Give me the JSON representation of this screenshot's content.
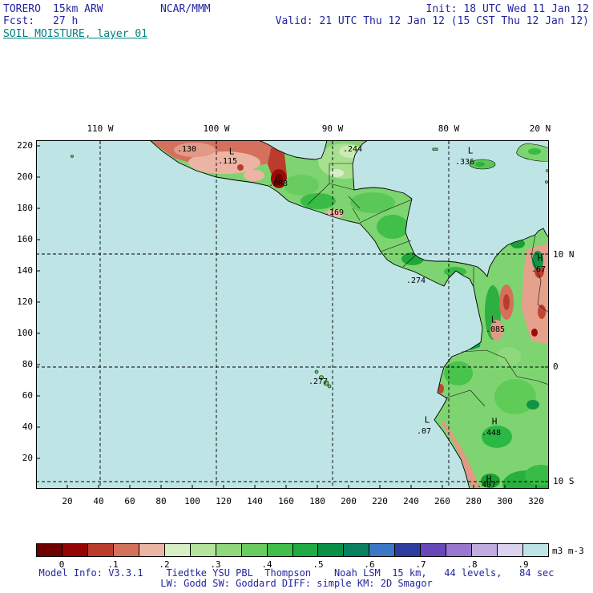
{
  "header": {
    "model": "TORERO",
    "config": "15km ARW",
    "org": "NCAR/MMM",
    "init": "Init: 18 UTC Wed 11 Jan 12",
    "fcst_label": "Fcst:",
    "fcst": "27 h",
    "valid": "Valid: 21 UTC Thu 12 Jan 12 (15 CST Thu 12 Jan 12)",
    "field_title": "SOIL MOISTURE, layer 01"
  },
  "axes": {
    "top": [
      "110 W",
      "100 W",
      "90 W",
      "80 W",
      "20 N"
    ],
    "right": [
      "10 N",
      "0",
      "10 S"
    ],
    "left": [
      "220",
      "200",
      "180",
      "160",
      "140",
      "120",
      "100",
      "80",
      "60",
      "40",
      "20"
    ],
    "bottom": [
      "20",
      "40",
      "60",
      "80",
      "100",
      "120",
      "140",
      "160",
      "180",
      "200",
      "220",
      "240",
      "260",
      "280",
      "300",
      "320"
    ]
  },
  "annotations": [
    ".130",
    "L",
    ".115",
    ".088",
    ".244",
    ".169",
    ".274",
    "L",
    ".336",
    "H",
    ".67",
    "L",
    ".085",
    ".277",
    "L",
    ".07",
    "H",
    ".448",
    "H",
    ".407"
  ],
  "colorbar": {
    "tick_labels": [
      "0",
      ".1",
      ".2",
      ".3",
      ".4",
      ".5",
      ".6",
      ".7",
      ".8",
      ".9"
    ],
    "units": "m3 m-3",
    "colors": [
      "#700000",
      "#940404",
      "#bc3c2c",
      "#d4705c",
      "#ecb4a4",
      "#d8eec4",
      "#b4e49c",
      "#90d87c",
      "#68cc60",
      "#40c048",
      "#20ac44",
      "#089048",
      "#0a8060",
      "#3c78c8",
      "#2c3ca0",
      "#6848b8",
      "#9878d0",
      "#c0acde",
      "#dcd4ee",
      "#bee4e6"
    ]
  },
  "footer": {
    "line1": "Model Info: V3.3.1    Tiedtke YSU PBL  Thompson    Noah LSM  15 km,   44 levels,   84 sec",
    "line2": "LW: Godd SW: Goddard DIFF: simple KM: 2D Smagor"
  },
  "colors": {
    "header_text": "#2424a0",
    "title_text": "#008080",
    "ocean": "#bee4e6",
    "land_base": "#7ed470"
  }
}
